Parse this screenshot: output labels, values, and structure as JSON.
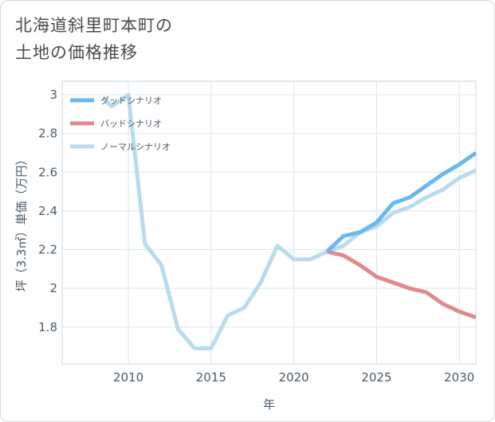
{
  "title": {
    "line1": "北海道斜里町本町の",
    "line2": "土地の価格推移"
  },
  "chart_data": {
    "type": "line",
    "xlabel": "年",
    "ylabel": "坪（3.3㎡）単価（万円）",
    "xlim": [
      2006,
      2031
    ],
    "ylim": [
      1.61,
      3.07
    ],
    "x_ticks": [
      2010,
      2015,
      2020,
      2025,
      2030
    ],
    "y_ticks": [
      1.8,
      2,
      2.2,
      2.4,
      2.6,
      2.8,
      3
    ],
    "y_tick_labels": [
      "1.8",
      "2",
      "2.2",
      "2.4",
      "2.6",
      "2.8",
      "3"
    ],
    "grid": true,
    "legend_position": "top-left",
    "series": [
      {
        "name": "グッドシナリオ",
        "color": "#6ab8ef",
        "x": [
          2022,
          2023,
          2024,
          2025,
          2026,
          2027,
          2028,
          2029,
          2030,
          2031
        ],
        "y": [
          2.19,
          2.27,
          2.29,
          2.34,
          2.44,
          2.47,
          2.53,
          2.59,
          2.64,
          2.7
        ]
      },
      {
        "name": "バッドシナリオ",
        "color": "#e08a8f",
        "x": [
          2022,
          2023,
          2024,
          2025,
          2026,
          2027,
          2028,
          2029,
          2030,
          2031
        ],
        "y": [
          2.19,
          2.17,
          2.12,
          2.06,
          2.03,
          2.0,
          1.98,
          1.92,
          1.88,
          1.85
        ]
      },
      {
        "name": "ノーマルシナリオ",
        "color": "#b8dced",
        "x": [
          2008.5,
          2009,
          2010,
          2011,
          2012,
          2013,
          2014,
          2015,
          2016,
          2017,
          2018,
          2019,
          2020,
          2021,
          2022,
          2023,
          2024,
          2025,
          2026,
          2027,
          2028,
          2029,
          2030,
          2031
        ],
        "y": [
          2.98,
          2.94,
          3.0,
          2.23,
          2.12,
          1.79,
          1.69,
          1.69,
          1.86,
          1.9,
          2.03,
          2.22,
          2.15,
          2.15,
          2.19,
          2.22,
          2.29,
          2.32,
          2.39,
          2.42,
          2.47,
          2.51,
          2.57,
          2.61
        ]
      }
    ]
  }
}
